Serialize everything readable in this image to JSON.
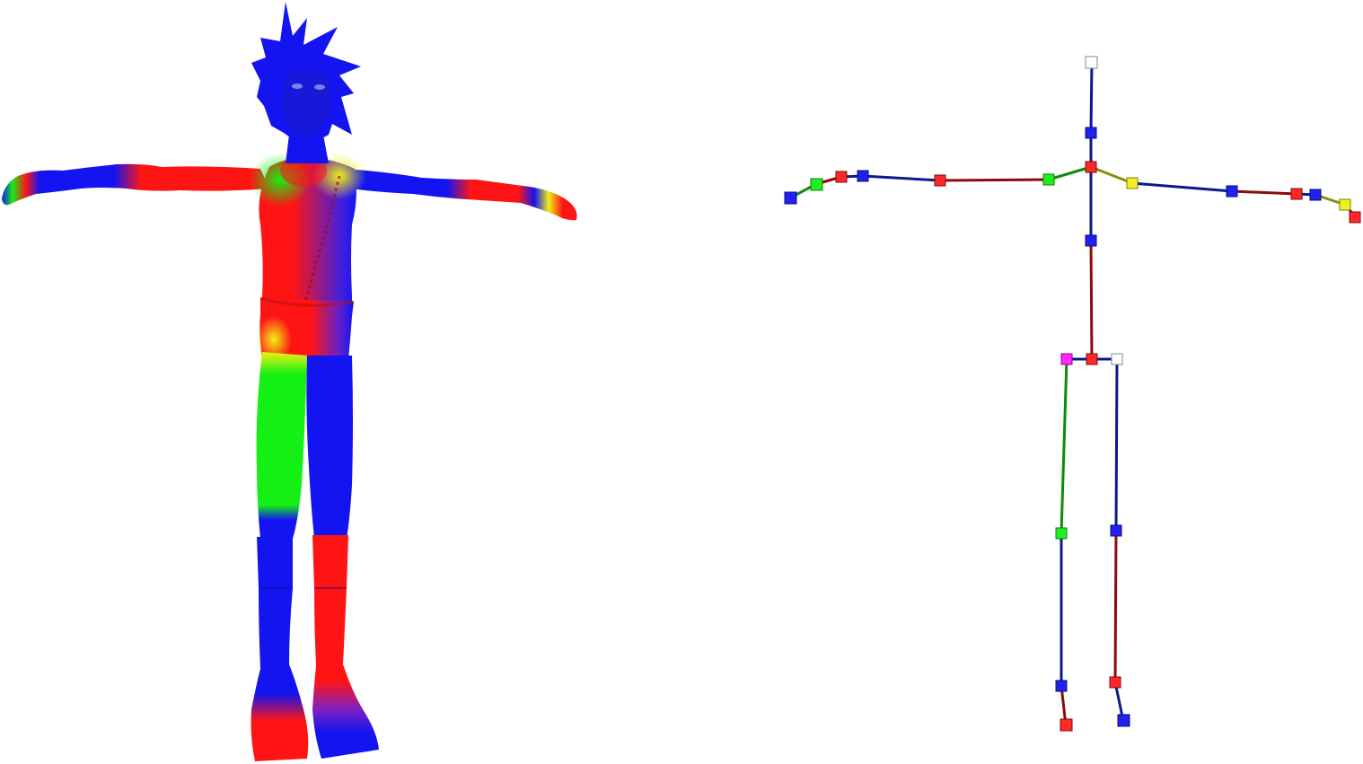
{
  "scene": {
    "background": "#ffffff",
    "left_panel": "skinned-character-mesh",
    "right_panel": "skeleton-rig",
    "palette": {
      "blue": "#1414f0",
      "red": "#ff1414",
      "green": "#14f014",
      "yellow": "#f0f014",
      "magenta": "#ff20ff",
      "white": "#ffffff",
      "bone_blue": "#0a1a8c",
      "bone_red": "#8c0a0a",
      "bone_green": "#0a8c0a",
      "bone_yellow": "#8c8c0a"
    }
  }
}
